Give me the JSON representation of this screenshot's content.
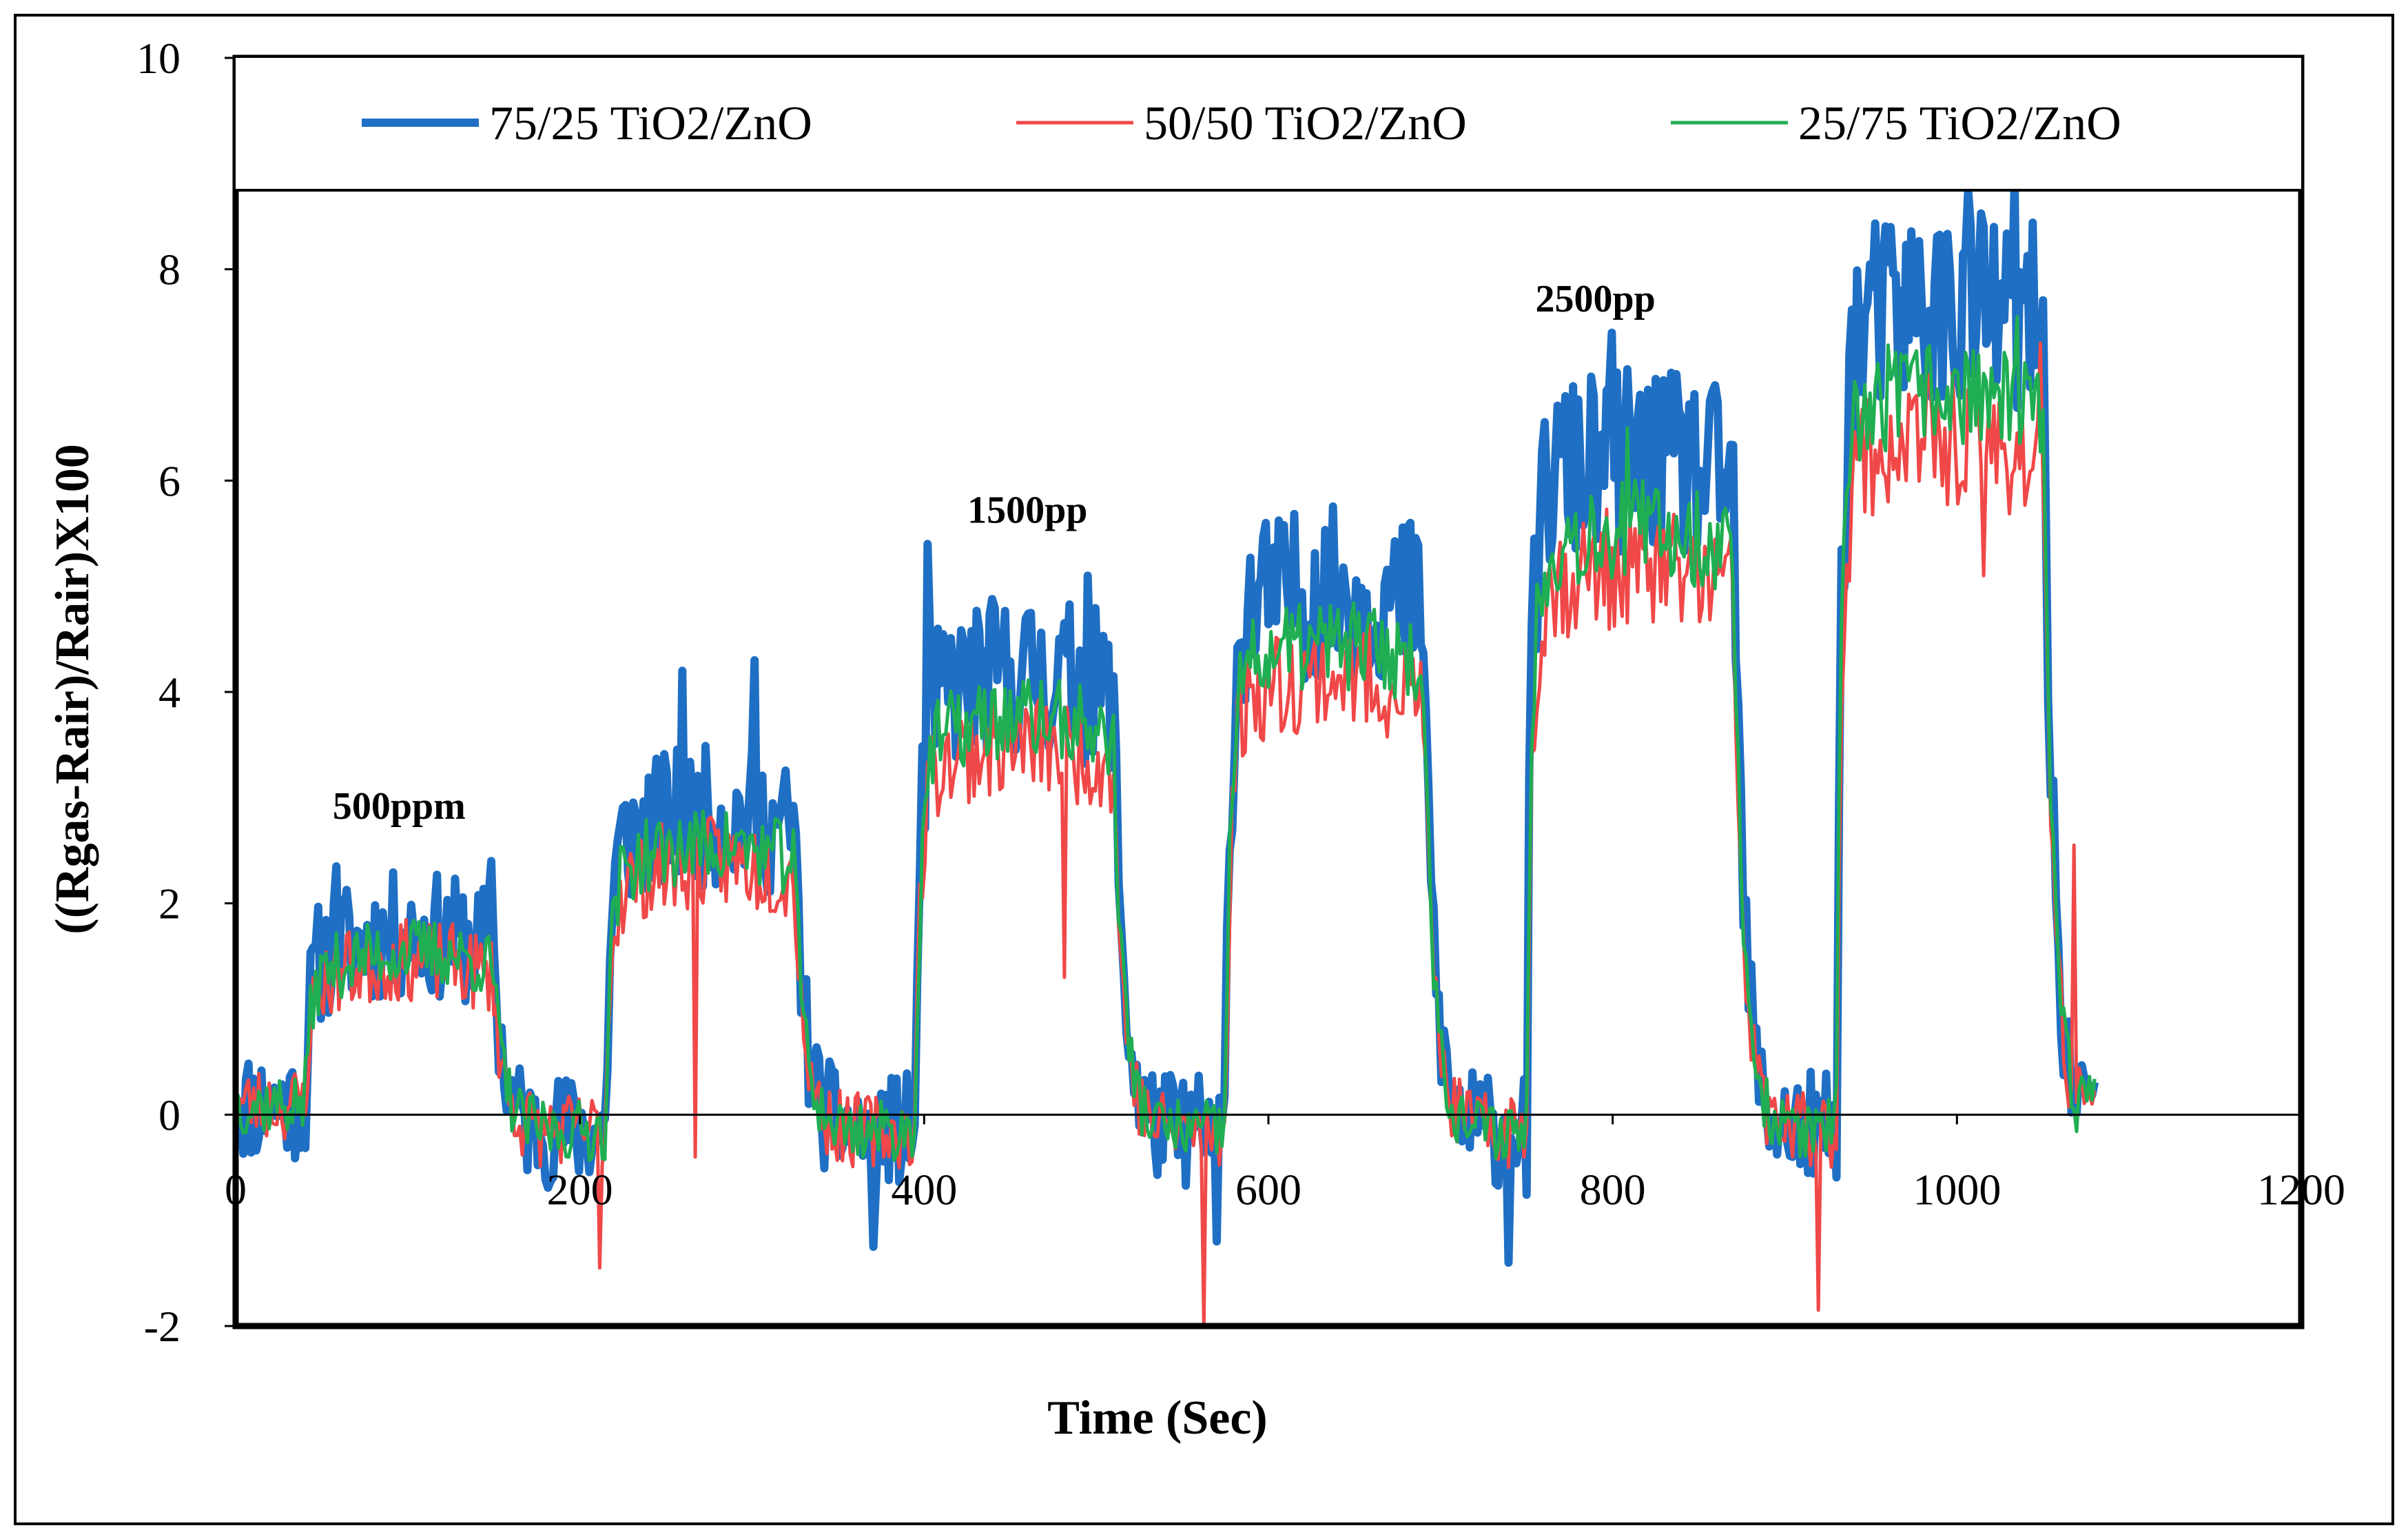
{
  "chart_data": {
    "type": "line",
    "title": "",
    "xlabel": "Time (Sec)",
    "ylabel": "((Rgas-Rair)/Rair)X100",
    "xlim": [
      0,
      1200
    ],
    "ylim": [
      -2,
      10
    ],
    "x_ticks": [
      0,
      200,
      400,
      600,
      800,
      1000,
      1200
    ],
    "x_tick_labels": [
      "0",
      "200",
      "400",
      "600",
      "800",
      "1000",
      "1200"
    ],
    "y_ticks": [
      -2,
      0,
      2,
      4,
      6,
      8,
      10
    ],
    "y_tick_labels": [
      "-2",
      "0",
      "2",
      "4",
      "6",
      "8",
      "10"
    ],
    "grid": false,
    "legend_position": "top",
    "annotations": [
      {
        "text": "500ppm",
        "x": 95,
        "y": 2.8
      },
      {
        "text": "1500pp",
        "x": 460,
        "y": 5.6
      },
      {
        "text": "2500pp",
        "x": 790,
        "y": 7.6
      }
    ],
    "cycles": [
      {
        "on_start": 40,
        "on_end": 150,
        "off_end": 215,
        "level": 1.3
      },
      {
        "on_start": 215,
        "on_end": 325,
        "off_end": 395,
        "level": 2.3
      },
      {
        "on_start": 395,
        "on_end": 510,
        "off_end": 575,
        "level": 3.5
      },
      {
        "on_start": 575,
        "on_end": 690,
        "off_end": 750,
        "level": 4.2
      },
      {
        "on_start": 750,
        "on_end": 870,
        "off_end": 930,
        "level": 5.3
      },
      {
        "on_start": 930,
        "on_end": 1050,
        "off_end": 1080,
        "level": 6.6
      }
    ],
    "series": [
      {
        "name": "75/25 TiO2/ZnO",
        "color": "#1f6fc5",
        "width": 12,
        "scale": 1.12,
        "noise": 0.85,
        "seed": 11,
        "peaks": [
          {
            "x": 58,
            "y": 2.35
          },
          {
            "x": 148,
            "y": 2.4
          },
          {
            "x": 260,
            "y": 4.2
          },
          {
            "x": 301,
            "y": 4.3
          },
          {
            "x": 402,
            "y": 5.4
          },
          {
            "x": 495,
            "y": 5.1
          },
          {
            "x": 599,
            "y": 5.6
          },
          {
            "x": 683,
            "y": 5.6
          },
          {
            "x": 800,
            "y": 7.4
          },
          {
            "x": 1007,
            "y": 8.75
          },
          {
            "x": 1034,
            "y": 8.85
          },
          {
            "x": 370,
            "y": -1.25
          },
          {
            "x": 740,
            "y": -1.4
          },
          {
            "x": 570,
            "y": -1.2
          }
        ]
      },
      {
        "name": "50/50 TiO2/ZnO",
        "color": "#f04848",
        "width": 5,
        "scale": 0.93,
        "noise": 0.55,
        "seed": 23,
        "peaks": [
          {
            "x": 65,
            "y": 1.7
          },
          {
            "x": 267,
            "y": -0.4
          },
          {
            "x": 481,
            "y": 1.3
          },
          {
            "x": 563,
            "y": -2.05
          },
          {
            "x": 919,
            "y": -1.85
          },
          {
            "x": 1048,
            "y": 7.3
          },
          {
            "x": 1068,
            "y": 2.55
          },
          {
            "x": 211,
            "y": -1.45
          },
          {
            "x": 1015,
            "y": 5.1
          }
        ]
      },
      {
        "name": "25/75 TiO2/ZnO",
        "color": "#1fae52",
        "width": 5,
        "scale": 1.0,
        "noise": 0.45,
        "seed": 37,
        "peaks": [
          {
            "x": 1035,
            "y": 7.55
          },
          {
            "x": 808,
            "y": 6.5
          }
        ]
      }
    ]
  }
}
